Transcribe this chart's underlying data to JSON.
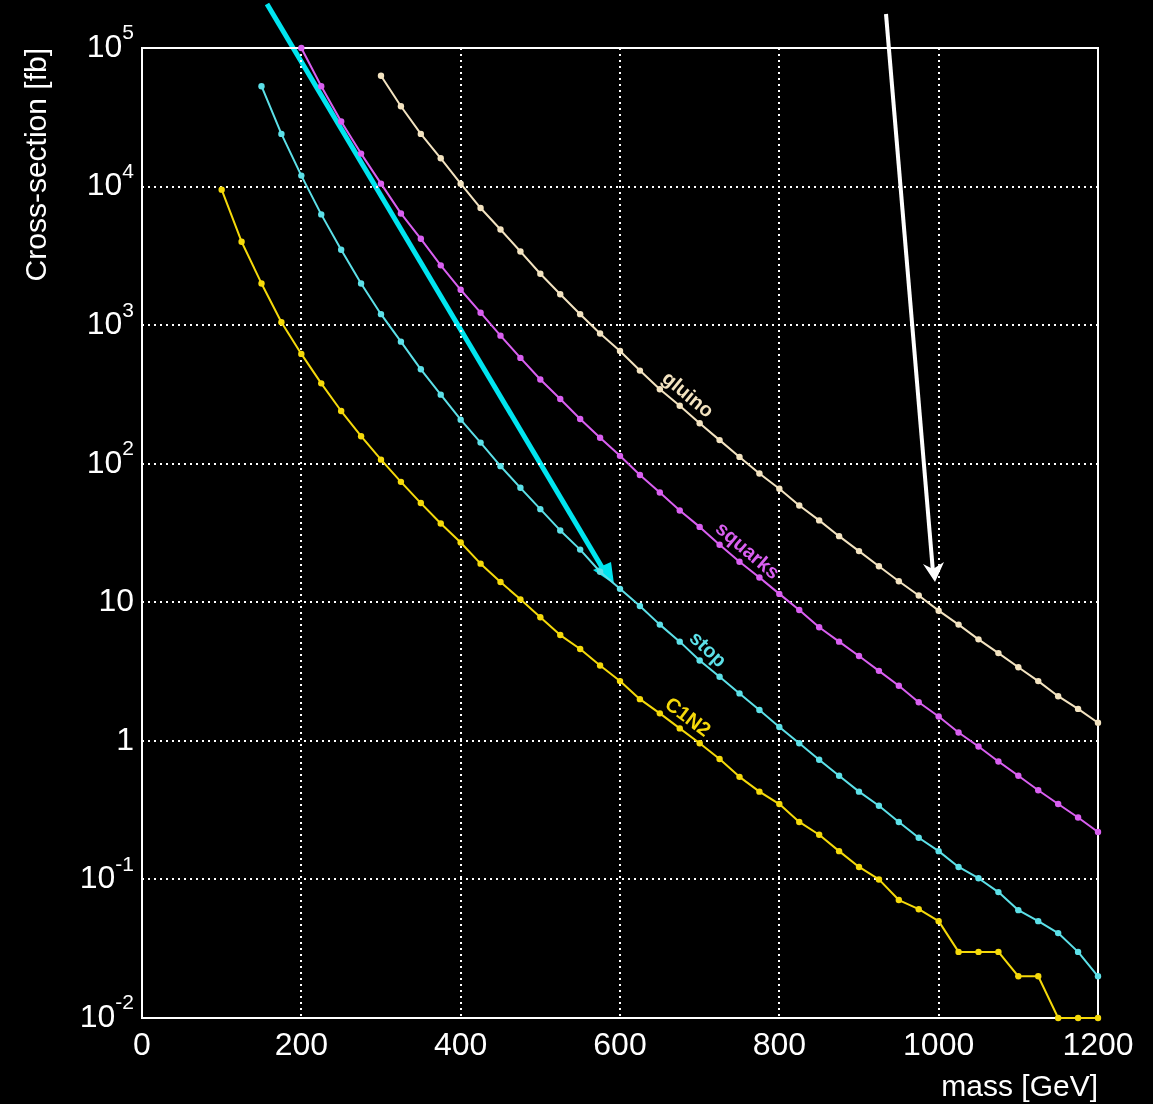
{
  "chart_data": {
    "type": "line",
    "xlabel": "mass [GeV]",
    "ylabel": "Cross-section [fb]",
    "log": "y",
    "grid": true,
    "legend": false,
    "marker": "circle",
    "line_style": "solid",
    "xlim": [
      0,
      1200
    ],
    "xticks": [
      0,
      200,
      400,
      600,
      800,
      1000,
      1200
    ],
    "ylim": [
      0.01,
      100000
    ],
    "yticks": [
      {
        "value": 0.01,
        "label": "10$^{-2}$"
      },
      {
        "value": 0.1,
        "label": "10$^{-1}$"
      },
      1,
      10,
      {
        "value": 100,
        "label": "10$^{2}$"
      },
      {
        "value": 1000,
        "label": "10$^{3}$"
      },
      {
        "value": 10000,
        "label": "10$^{4}$"
      },
      {
        "value": 100000,
        "label": "10$^{5}$"
      }
    ],
    "series": [
      {
        "name": "gluino",
        "color": "#f3e3c0",
        "x": [
          300,
          325,
          350,
          375,
          400,
          425,
          450,
          475,
          500,
          525,
          550,
          575,
          600,
          625,
          650,
          675,
          700,
          725,
          750,
          775,
          800,
          825,
          850,
          875,
          900,
          925,
          950,
          975,
          1000,
          1025,
          1050,
          1075,
          1100,
          1125,
          1150,
          1175,
          1200
        ],
        "values": [
          63000,
          38000,
          24000,
          16000,
          10500,
          7000,
          4900,
          3400,
          2350,
          1670,
          1200,
          870,
          650,
          470,
          345,
          262,
          196,
          148,
          112,
          85,
          66,
          50,
          39,
          30,
          23.4,
          18.2,
          14.2,
          11.2,
          8.7,
          6.9,
          5.4,
          4.3,
          3.4,
          2.7,
          2.1,
          1.7,
          1.35
        ]
      },
      {
        "name": "squarks",
        "color": "#d95ff0",
        "x": [
          200,
          225,
          250,
          275,
          300,
          325,
          350,
          375,
          400,
          425,
          450,
          475,
          500,
          525,
          550,
          575,
          600,
          625,
          650,
          675,
          700,
          725,
          750,
          775,
          800,
          825,
          850,
          875,
          900,
          925,
          950,
          975,
          1000,
          1025,
          1050,
          1075,
          1100,
          1125,
          1150,
          1175,
          1200
        ],
        "values": [
          100000,
          53000,
          29500,
          17300,
          10500,
          6400,
          4200,
          2700,
          1800,
          1230,
          840,
          580,
          405,
          293,
          210,
          154,
          114,
          83,
          62,
          46,
          35,
          26,
          19.6,
          15.1,
          11.5,
          8.8,
          6.6,
          5.2,
          4.1,
          3.2,
          2.5,
          1.9,
          1.5,
          1.15,
          0.91,
          0.71,
          0.56,
          0.44,
          0.35,
          0.28,
          0.22
        ]
      },
      {
        "name": "stop",
        "color": "#5ce0e8",
        "x": [
          150,
          175,
          200,
          225,
          250,
          275,
          300,
          325,
          350,
          375,
          400,
          425,
          450,
          475,
          500,
          525,
          550,
          575,
          600,
          625,
          650,
          675,
          700,
          725,
          750,
          775,
          800,
          825,
          850,
          875,
          900,
          925,
          950,
          975,
          1000,
          1025,
          1050,
          1075,
          1100,
          1125,
          1150,
          1175,
          1200
        ],
        "values": [
          53000,
          24000,
          12000,
          6300,
          3500,
          2000,
          1200,
          760,
          480,
          315,
          208,
          142,
          96,
          67,
          47,
          33,
          24,
          16.6,
          12.5,
          9.4,
          6.9,
          5.2,
          3.8,
          2.9,
          2.2,
          1.67,
          1.26,
          0.96,
          0.73,
          0.56,
          0.43,
          0.34,
          0.26,
          0.2,
          0.16,
          0.123,
          0.102,
          0.081,
          0.06,
          0.05,
          0.041,
          0.03,
          0.02
        ]
      },
      {
        "name": "C1N2",
        "color": "#f5d90a",
        "x": [
          100,
          125,
          150,
          175,
          200,
          225,
          250,
          275,
          300,
          325,
          350,
          375,
          400,
          425,
          450,
          475,
          500,
          525,
          550,
          575,
          600,
          625,
          650,
          675,
          700,
          725,
          750,
          775,
          800,
          825,
          850,
          875,
          900,
          925,
          950,
          975,
          1000,
          1025,
          1050,
          1075,
          1100,
          1125,
          1150,
          1175,
          1200
        ],
        "values": [
          9500,
          4000,
          2000,
          1050,
          620,
          380,
          240,
          158,
          107,
          74,
          52,
          37,
          27,
          19,
          14,
          10.5,
          7.8,
          5.8,
          4.6,
          3.5,
          2.7,
          2.0,
          1.58,
          1.23,
          0.96,
          0.74,
          0.55,
          0.43,
          0.35,
          0.26,
          0.21,
          0.16,
          0.123,
          0.1,
          0.071,
          0.061,
          0.05,
          0.03,
          0.03,
          0.03,
          0.02,
          0.02,
          0.01,
          0.01,
          0.01
        ]
      }
    ]
  }
}
